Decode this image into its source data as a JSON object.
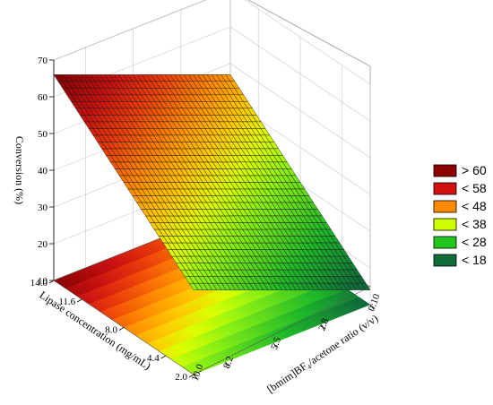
{
  "chart_data": {
    "type": "surface3d",
    "title": "",
    "zlabel": "Conversion (%)",
    "ylabel": "Lipase concentration (mg/mL)",
    "xlabel": "[bmim]BF₄/acetone ratio (v/v)",
    "z_ticks": [
      "10",
      "20",
      "30",
      "40",
      "50",
      "60",
      "70"
    ],
    "zlim": [
      10,
      70
    ],
    "y_ticks": [
      "14.0",
      "11.6",
      "8.0",
      "4.4",
      "2.0"
    ],
    "x_ticks": [
      "0:10",
      "2.8",
      "5.5",
      "8.2",
      "10.0"
    ],
    "surface_corners": [
      {
        "lipase": 14.0,
        "ratio": 10.0,
        "conversion": 66
      },
      {
        "lipase": 14.0,
        "ratio": 0,
        "conversion": 47
      },
      {
        "lipase": 2.0,
        "ratio": 10.0,
        "conversion": 33
      },
      {
        "lipase": 2.0,
        "ratio": 0,
        "conversion": 14
      }
    ],
    "legend_position": "right",
    "legend": [
      {
        "label": "> 60",
        "color": "#8b0000"
      },
      {
        "label": "< 58",
        "color": "#d01010"
      },
      {
        "label": "< 48",
        "color": "#ff8c00"
      },
      {
        "label": "< 38",
        "color": "#cfff00"
      },
      {
        "label": "< 28",
        "color": "#22c41e"
      },
      {
        "label": "< 18",
        "color": "#0f6b3a"
      }
    ]
  }
}
